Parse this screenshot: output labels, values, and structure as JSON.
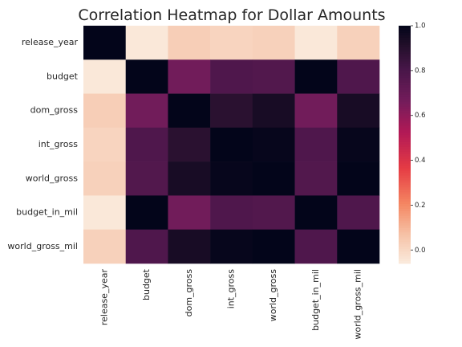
{
  "chart_data": {
    "type": "heatmap",
    "title": "Correlation Heatmap for Dollar Amounts",
    "row_labels": [
      "release_year",
      "budget",
      "dom_gross",
      "int_gross",
      "world_gross",
      "budget_in_mil",
      "world_gross_mil"
    ],
    "col_labels": [
      "release_year",
      "budget",
      "dom_gross",
      "int_gross",
      "world_gross",
      "budget_in_mil",
      "world_gross_mil"
    ],
    "values": [
      [
        1.0,
        -0.05,
        0.03,
        0.01,
        0.02,
        -0.05,
        0.02
      ],
      [
        -0.05,
        1.0,
        0.67,
        0.78,
        0.77,
        1.0,
        0.78
      ],
      [
        0.03,
        0.67,
        1.0,
        0.89,
        0.94,
        0.67,
        0.94
      ],
      [
        0.01,
        0.78,
        0.89,
        1.0,
        0.99,
        0.78,
        0.99
      ],
      [
        0.02,
        0.77,
        0.94,
        0.99,
        1.0,
        0.77,
        1.0
      ],
      [
        -0.05,
        1.0,
        0.67,
        0.78,
        0.77,
        1.0,
        0.78
      ],
      [
        0.02,
        0.78,
        0.94,
        0.99,
        1.0,
        0.78,
        1.0
      ]
    ],
    "colorbar": {
      "range": [
        -0.06,
        1.0
      ],
      "ticks": [
        0.0,
        0.2,
        0.4,
        0.6,
        0.8,
        1.0
      ],
      "tick_labels": [
        "0.0",
        "0.2",
        "0.4",
        "0.6",
        "0.8",
        "1.0"
      ],
      "colormap": "rocket_r"
    },
    "grid": false,
    "legend": "colorbar-right"
  }
}
